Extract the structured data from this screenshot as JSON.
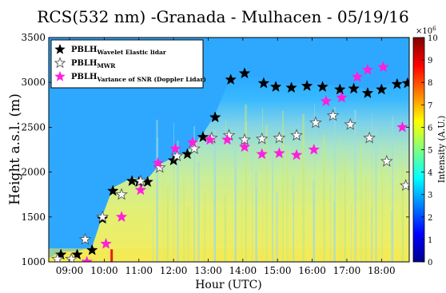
{
  "chart_data": {
    "type": "scatter",
    "title": "RCS(532 nm) -Granada - Mulhacen - 05/19/16",
    "xlabel": "Hour (UTC)",
    "ylabel": "Height a.s.l. (m)",
    "xlim": [
      8.4,
      18.8
    ],
    "ylim": [
      1000,
      3500
    ],
    "x_ticks": [
      9,
      10,
      11,
      12,
      13,
      14,
      15,
      16,
      17,
      18
    ],
    "x_tick_labels": [
      "09:00",
      "10:00",
      "11:00",
      "12:00",
      "13:00",
      "14:00",
      "15:00",
      "16:00",
      "17:00",
      "18:00"
    ],
    "y_ticks": [
      1000,
      1500,
      2000,
      2500,
      3000,
      3500
    ],
    "y_tick_labels": [
      "1000",
      "1500",
      "2000",
      "2500",
      "3000",
      "3500"
    ],
    "background": "range-corrected signal colormap (jet)",
    "colorbar": {
      "label": "Intensity (A.U.)",
      "exponent": "×10",
      "exponent_power": "6",
      "range": [
        0,
        10
      ],
      "ticks": [
        0,
        1,
        2,
        3,
        4,
        5,
        6,
        7,
        8,
        9,
        10
      ],
      "tick_labels": [
        "0",
        "1",
        "2",
        "3",
        "4",
        "5",
        "6",
        "7",
        "8",
        "9",
        "10"
      ]
    },
    "legend": {
      "placement": "top-left",
      "entries": [
        {
          "base": "PBLH",
          "sub": "Wavelet Elastic lidar",
          "marker": "filled-star",
          "color": "#000000"
        },
        {
          "base": "PBLH",
          "sub": "MWR",
          "marker": "hollow-star",
          "color": "#ffffff"
        },
        {
          "base": "PBLH",
          "sub": "Variance of SNR (Doppler Lidar)",
          "marker": "filled-star",
          "color": "#ff1fdc"
        }
      ]
    },
    "series": [
      {
        "name": "PBLH Wavelet Elastic lidar",
        "marker": "filled-star",
        "color": "#000000",
        "points": [
          [
            8.75,
            1080
          ],
          [
            9.22,
            1080
          ],
          [
            9.65,
            1130
          ],
          [
            9.95,
            1480
          ],
          [
            10.25,
            1790
          ],
          [
            10.8,
            1900
          ],
          [
            11.0,
            1890
          ],
          [
            11.25,
            1890
          ],
          [
            11.6,
            2050
          ],
          [
            12.0,
            2130
          ],
          [
            12.4,
            2200
          ],
          [
            12.85,
            2390
          ],
          [
            13.2,
            2610
          ],
          [
            13.65,
            3030
          ],
          [
            14.05,
            3100
          ],
          [
            14.6,
            2990
          ],
          [
            14.95,
            2950
          ],
          [
            15.4,
            2940
          ],
          [
            15.85,
            2960
          ],
          [
            16.3,
            2950
          ],
          [
            16.8,
            2920
          ],
          [
            17.2,
            2930
          ],
          [
            17.6,
            2880
          ],
          [
            18.0,
            2920
          ],
          [
            18.45,
            2980
          ],
          [
            18.75,
            2990
          ]
        ]
      },
      {
        "name": "PBLH MWR",
        "marker": "hollow-star",
        "color": "#ffffff",
        "points": [
          [
            8.65,
            1030
          ],
          [
            9.05,
            1030
          ],
          [
            9.45,
            1250
          ],
          [
            9.95,
            1500
          ],
          [
            10.5,
            1750
          ],
          [
            11.05,
            1900
          ],
          [
            11.6,
            2050
          ],
          [
            12.1,
            2180
          ],
          [
            12.6,
            2260
          ],
          [
            13.1,
            2380
          ],
          [
            13.6,
            2410
          ],
          [
            14.05,
            2360
          ],
          [
            14.55,
            2370
          ],
          [
            15.05,
            2380
          ],
          [
            15.55,
            2410
          ],
          [
            16.1,
            2550
          ],
          [
            16.6,
            2630
          ],
          [
            17.1,
            2530
          ],
          [
            17.65,
            2380
          ],
          [
            18.15,
            2120
          ],
          [
            18.7,
            1850
          ]
        ]
      },
      {
        "name": "PBLH Variance of SNR (Doppler Lidar)",
        "marker": "filled-star",
        "color": "#ff1fdc",
        "points": [
          [
            9.5,
            1000
          ],
          [
            10.05,
            1200
          ],
          [
            10.5,
            1500
          ],
          [
            11.05,
            1800
          ],
          [
            11.55,
            2100
          ],
          [
            12.05,
            2260
          ],
          [
            12.55,
            2330
          ],
          [
            13.05,
            2360
          ],
          [
            13.55,
            2360
          ],
          [
            14.05,
            2280
          ],
          [
            14.55,
            2200
          ],
          [
            15.05,
            2210
          ],
          [
            15.55,
            2190
          ],
          [
            16.05,
            2250
          ],
          [
            16.4,
            2790
          ],
          [
            16.85,
            2830
          ],
          [
            17.3,
            3060
          ],
          [
            17.6,
            3140
          ],
          [
            18.05,
            3170
          ],
          [
            18.6,
            2500
          ]
        ]
      }
    ]
  }
}
